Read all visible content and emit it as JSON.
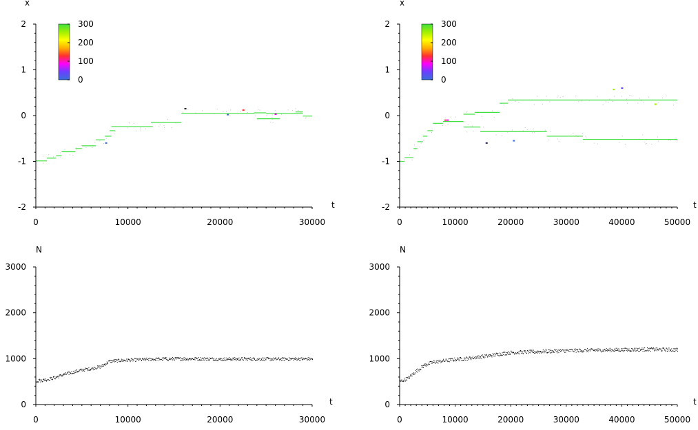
{
  "chart_data": [
    {
      "type": "scatter",
      "panel": "top-left",
      "ylabel": "x",
      "xlabel": "t",
      "xlim": [
        0,
        30000
      ],
      "ylim": [
        -2,
        2
      ],
      "x_ticks": [
        0,
        10000,
        20000,
        30000
      ],
      "y_ticks": [
        -2,
        -1,
        0,
        1,
        2
      ],
      "x_tick_labels": [
        "0",
        "10000",
        "20000",
        "30000"
      ],
      "y_tick_labels": [
        "-2",
        "-1",
        "0",
        "1",
        "2"
      ],
      "colorbar": {
        "ticks": [
          0,
          100,
          200,
          300
        ],
        "tick_labels": [
          "0",
          "100",
          "200",
          "300"
        ],
        "stops": [
          "#3a6fd8",
          "#6a40ff",
          "#ff00ff",
          "#ff3030",
          "#ffb000",
          "#ffff00",
          "#a0f000",
          "#40e040"
        ]
      },
      "segments": [
        {
          "t0": 0,
          "t1": 1200,
          "x": -0.99,
          "color": "#40e040"
        },
        {
          "t0": 1200,
          "t1": 2200,
          "x": -0.93,
          "color": "#40e040"
        },
        {
          "t0": 2200,
          "t1": 2800,
          "x": -0.88,
          "color": "#40e040"
        },
        {
          "t0": 2800,
          "t1": 4300,
          "x": -0.79,
          "color": "#40e040"
        },
        {
          "t0": 4300,
          "t1": 5000,
          "x": -0.72,
          "color": "#40e040"
        },
        {
          "t0": 5000,
          "t1": 6500,
          "x": -0.66,
          "color": "#40e040"
        },
        {
          "t0": 6500,
          "t1": 7500,
          "x": -0.53,
          "color": "#40e040"
        },
        {
          "t0": 7500,
          "t1": 8200,
          "x": -0.45,
          "color": "#40e040"
        },
        {
          "t0": 8000,
          "t1": 8600,
          "x": -0.33,
          "color": "#40e040"
        },
        {
          "t0": 8200,
          "t1": 12700,
          "x": -0.24,
          "color": "#40e040"
        },
        {
          "t0": 12500,
          "t1": 15800,
          "x": -0.15,
          "color": "#40e040"
        },
        {
          "t0": 15800,
          "t1": 23700,
          "x": 0.05,
          "color": "#40e040"
        },
        {
          "t0": 23700,
          "t1": 25000,
          "x": 0.06,
          "color": "#40e040"
        },
        {
          "t0": 25000,
          "t1": 29000,
          "x": 0.05,
          "color": "#40e040"
        },
        {
          "t0": 24000,
          "t1": 26500,
          "x": -0.07,
          "color": "#40e040"
        },
        {
          "t0": 28200,
          "t1": 29000,
          "x": 0.08,
          "color": "#40e040"
        },
        {
          "t0": 29000,
          "t1": 30000,
          "x": -0.01,
          "color": "#40e040"
        }
      ],
      "markers": [
        {
          "t": 16200,
          "x": 0.15,
          "color": "#222222"
        },
        {
          "t": 20800,
          "x": 0.02,
          "color": "#3a6fd8"
        },
        {
          "t": 22500,
          "x": 0.12,
          "color": "#ff3030"
        },
        {
          "t": 26000,
          "x": 0.03,
          "color": "#ff00ff"
        },
        {
          "t": 7600,
          "x": -0.6,
          "color": "#3a6fd8"
        }
      ]
    },
    {
      "type": "scatter",
      "panel": "top-right",
      "ylabel": "x",
      "xlabel": "t",
      "xlim": [
        0,
        50000
      ],
      "ylim": [
        -2,
        2
      ],
      "x_ticks": [
        0,
        10000,
        20000,
        30000,
        40000,
        50000
      ],
      "y_ticks": [
        -2,
        -1,
        0,
        1,
        2
      ],
      "x_tick_labels": [
        "0",
        "10000",
        "20000",
        "30000",
        "40000",
        "50000"
      ],
      "y_tick_labels": [
        "-2",
        "-1",
        "0",
        "1",
        "2"
      ],
      "colorbar": {
        "ticks": [
          0,
          100,
          200,
          300
        ],
        "tick_labels": [
          "0",
          "100",
          "200",
          "300"
        ],
        "stops": [
          "#3a6fd8",
          "#6a40ff",
          "#ff00ff",
          "#ff3030",
          "#ffb000",
          "#ffff00",
          "#a0f000",
          "#40e040"
        ]
      },
      "segments": [
        {
          "t0": 0,
          "t1": 900,
          "x": -1.0,
          "color": "#40e040"
        },
        {
          "t0": 900,
          "t1": 2500,
          "x": -0.92,
          "color": "#40e040"
        },
        {
          "t0": 2500,
          "t1": 3200,
          "x": -0.72,
          "color": "#40e040"
        },
        {
          "t0": 3200,
          "t1": 4200,
          "x": -0.57,
          "color": "#40e040"
        },
        {
          "t0": 4200,
          "t1": 5000,
          "x": -0.45,
          "color": "#40e040"
        },
        {
          "t0": 5000,
          "t1": 6000,
          "x": -0.33,
          "color": "#40e040"
        },
        {
          "t0": 6000,
          "t1": 7800,
          "x": -0.17,
          "color": "#40e040"
        },
        {
          "t0": 7800,
          "t1": 11500,
          "x": -0.13,
          "color": "#40e040"
        },
        {
          "t0": 11500,
          "t1": 13500,
          "x": 0.03,
          "color": "#40e040"
        },
        {
          "t0": 13500,
          "t1": 18000,
          "x": 0.07,
          "color": "#40e040"
        },
        {
          "t0": 18000,
          "t1": 19500,
          "x": 0.27,
          "color": "#40e040"
        },
        {
          "t0": 19500,
          "t1": 50000,
          "x": 0.34,
          "color": "#40e040"
        },
        {
          "t0": 11500,
          "t1": 14500,
          "x": -0.25,
          "color": "#40e040"
        },
        {
          "t0": 14500,
          "t1": 26500,
          "x": -0.35,
          "color": "#40e040"
        },
        {
          "t0": 26500,
          "t1": 33000,
          "x": -0.45,
          "color": "#40e040"
        },
        {
          "t0": 33000,
          "t1": 50000,
          "x": -0.52,
          "color": "#40e040"
        }
      ],
      "markers": [
        {
          "t": 8200,
          "x": -0.1,
          "color": "#ff3030"
        },
        {
          "t": 8600,
          "x": -0.1,
          "color": "#ff00ff"
        },
        {
          "t": 15600,
          "x": -0.6,
          "color": "#222266"
        },
        {
          "t": 20500,
          "x": -0.55,
          "color": "#3a6fd8"
        },
        {
          "t": 38500,
          "x": 0.57,
          "color": "#a0f000"
        },
        {
          "t": 40000,
          "x": 0.6,
          "color": "#6a40ff"
        },
        {
          "t": 46000,
          "x": 0.25,
          "color": "#a0f000"
        }
      ]
    },
    {
      "type": "scatter",
      "panel": "bottom-left",
      "ylabel": "N",
      "xlabel": "t",
      "xlim": [
        0,
        30000
      ],
      "ylim": [
        0,
        3000
      ],
      "x_ticks": [
        0,
        10000,
        20000,
        30000
      ],
      "y_ticks": [
        0,
        1000,
        2000,
        3000
      ],
      "x_tick_labels": [
        "0",
        "10000",
        "20000",
        "30000"
      ],
      "y_tick_labels": [
        "0",
        "1000",
        "2000",
        "3000"
      ],
      "series": [
        {
          "t": [
            0,
            1000,
            2000,
            3000,
            4000,
            5000,
            6000,
            7000,
            8000,
            9000,
            10000,
            12000,
            14000,
            16000,
            18000,
            20000,
            22000,
            24000,
            26000,
            28000,
            30000
          ],
          "N": [
            520,
            545,
            590,
            660,
            710,
            760,
            790,
            830,
            950,
            965,
            975,
            990,
            1000,
            1005,
            1005,
            995,
            1000,
            1000,
            995,
            1000,
            1000
          ],
          "noise": 35,
          "color": "#000000"
        }
      ]
    },
    {
      "type": "scatter",
      "panel": "bottom-right",
      "ylabel": "N",
      "xlabel": "t",
      "xlim": [
        0,
        50000
      ],
      "ylim": [
        0,
        3000
      ],
      "x_ticks": [
        0,
        10000,
        20000,
        30000,
        40000,
        50000
      ],
      "y_ticks": [
        0,
        1000,
        2000,
        3000
      ],
      "x_tick_labels": [
        "0",
        "10000",
        "20000",
        "30000",
        "40000",
        "50000"
      ],
      "y_tick_labels": [
        "0",
        "1000",
        "2000",
        "3000"
      ],
      "series": [
        {
          "t": [
            0,
            1500,
            3000,
            4500,
            6000,
            8000,
            10000,
            12000,
            14000,
            16000,
            18000,
            20000,
            25000,
            30000,
            35000,
            40000,
            45000,
            50000
          ],
          "N": [
            510,
            580,
            740,
            870,
            930,
            960,
            990,
            1010,
            1040,
            1070,
            1110,
            1140,
            1160,
            1180,
            1190,
            1200,
            1210,
            1200
          ],
          "noise": 40,
          "color": "#000000"
        }
      ]
    }
  ]
}
